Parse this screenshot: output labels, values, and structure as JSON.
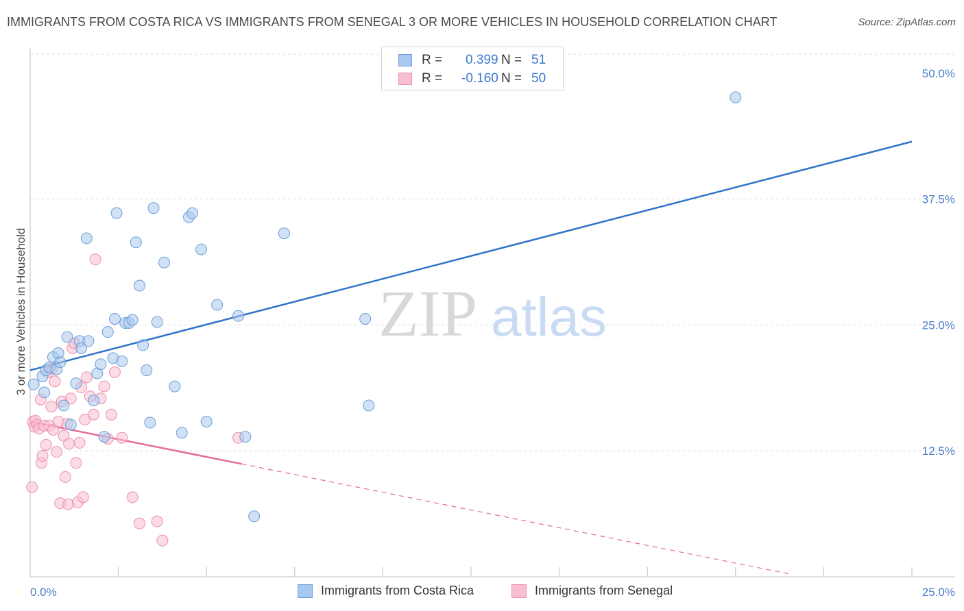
{
  "header": {
    "title": "IMMIGRANTS FROM COSTA RICA VS IMMIGRANTS FROM SENEGAL 3 OR MORE VEHICLES IN HOUSEHOLD CORRELATION CHART",
    "source": "Source: ZipAtlas.com"
  },
  "legend": {
    "row1": {
      "r_label": "R =",
      "r_value": "0.399",
      "n_label": "N =",
      "n_value": "51"
    },
    "row2": {
      "r_label": "R =",
      "r_value": "-0.160",
      "n_label": "N =",
      "n_value": "50"
    }
  },
  "watermark": {
    "zip": "ZIP",
    "atlas": "atlas"
  },
  "colors": {
    "blue_fill": "#a9c8ef",
    "blue_stroke": "#6a9fd8",
    "blue_line": "#2f73c9",
    "pink_fill": "#f7bfd0",
    "pink_stroke": "#ec8fae",
    "pink_line": "#e56b95",
    "grid": "#dddddd",
    "tick_text": "#4a7fc9"
  },
  "chart_data": {
    "type": "scatter",
    "title": "IMMIGRANTS FROM COSTA RICA VS IMMIGRANTS FROM SENEGAL 3 OR MORE VEHICLES IN HOUSEHOLD CORRELATION CHART",
    "xlabel": "",
    "ylabel": "3 or more Vehicles in Household",
    "xlim": [
      0,
      25
    ],
    "ylim": [
      0,
      52.5
    ],
    "x_tick_labels": [
      "0.0%",
      "25.0%"
    ],
    "y_ticks": [
      12.5,
      25.0,
      37.5,
      50.0
    ],
    "y_tick_labels": [
      "12.5%",
      "25.0%",
      "37.5%",
      "50.0%"
    ],
    "legend_position": "top-center",
    "series": [
      {
        "name": "Immigrants from Costa Rica",
        "R": 0.399,
        "N": 51,
        "trend": {
          "x": [
            0,
            25
          ],
          "y": [
            20.5,
            43.2
          ],
          "dashed_from": null
        },
        "points": [
          [
            0.1,
            19.1
          ],
          [
            0.35,
            19.9
          ],
          [
            0.4,
            18.3
          ],
          [
            0.45,
            20.5
          ],
          [
            0.55,
            20.8
          ],
          [
            0.65,
            21.8
          ],
          [
            0.75,
            20.6
          ],
          [
            0.8,
            22.2
          ],
          [
            0.85,
            21.3
          ],
          [
            0.95,
            17.0
          ],
          [
            1.05,
            23.8
          ],
          [
            1.15,
            15.1
          ],
          [
            1.3,
            19.2
          ],
          [
            1.4,
            23.4
          ],
          [
            1.45,
            22.7
          ],
          [
            1.6,
            33.6
          ],
          [
            1.65,
            23.4
          ],
          [
            1.8,
            17.5
          ],
          [
            1.9,
            20.2
          ],
          [
            2.0,
            21.1
          ],
          [
            2.1,
            13.9
          ],
          [
            2.2,
            24.3
          ],
          [
            2.35,
            21.7
          ],
          [
            2.4,
            25.6
          ],
          [
            2.45,
            36.1
          ],
          [
            2.6,
            21.4
          ],
          [
            2.7,
            25.2
          ],
          [
            2.8,
            25.2
          ],
          [
            2.9,
            25.5
          ],
          [
            3.0,
            33.2
          ],
          [
            3.1,
            28.9
          ],
          [
            3.2,
            23.0
          ],
          [
            3.3,
            20.5
          ],
          [
            3.4,
            15.3
          ],
          [
            3.5,
            36.6
          ],
          [
            3.6,
            25.3
          ],
          [
            3.8,
            31.2
          ],
          [
            4.1,
            18.9
          ],
          [
            4.3,
            14.3
          ],
          [
            4.5,
            35.7
          ],
          [
            4.6,
            36.1
          ],
          [
            4.85,
            32.5
          ],
          [
            5.0,
            15.4
          ],
          [
            5.3,
            27.0
          ],
          [
            5.9,
            25.9
          ],
          [
            6.1,
            13.9
          ],
          [
            6.35,
            6.0
          ],
          [
            7.2,
            34.1
          ],
          [
            9.5,
            25.6
          ],
          [
            9.6,
            17.0
          ],
          [
            20.0,
            47.6
          ]
        ]
      },
      {
        "name": "Immigrants from Senegal",
        "R": -0.16,
        "N": 50,
        "trend": {
          "x": [
            0,
            6.0
          ],
          "y": [
            15.4,
            11.2
          ],
          "dashed_to": [
            21.5,
            0.3
          ]
        },
        "points": [
          [
            0.05,
            8.9
          ],
          [
            0.08,
            15.4
          ],
          [
            0.12,
            14.9
          ],
          [
            0.15,
            15.5
          ],
          [
            0.2,
            15.1
          ],
          [
            0.25,
            14.7
          ],
          [
            0.3,
            17.6
          ],
          [
            0.32,
            11.3
          ],
          [
            0.35,
            12.0
          ],
          [
            0.4,
            15.0
          ],
          [
            0.45,
            13.1
          ],
          [
            0.5,
            20.3
          ],
          [
            0.55,
            15.0
          ],
          [
            0.6,
            16.9
          ],
          [
            0.62,
            20.7
          ],
          [
            0.65,
            14.6
          ],
          [
            0.7,
            19.4
          ],
          [
            0.75,
            12.4
          ],
          [
            0.8,
            15.4
          ],
          [
            0.85,
            7.3
          ],
          [
            0.9,
            17.4
          ],
          [
            0.95,
            14.0
          ],
          [
            1.0,
            9.9
          ],
          [
            1.05,
            15.2
          ],
          [
            1.08,
            7.2
          ],
          [
            1.1,
            13.2
          ],
          [
            1.15,
            17.7
          ],
          [
            1.2,
            22.7
          ],
          [
            1.25,
            23.2
          ],
          [
            1.3,
            11.3
          ],
          [
            1.35,
            7.4
          ],
          [
            1.4,
            13.3
          ],
          [
            1.45,
            18.8
          ],
          [
            1.5,
            7.9
          ],
          [
            1.55,
            15.6
          ],
          [
            1.6,
            19.8
          ],
          [
            1.7,
            17.9
          ],
          [
            1.8,
            16.1
          ],
          [
            1.85,
            31.5
          ],
          [
            2.0,
            17.7
          ],
          [
            2.1,
            18.9
          ],
          [
            2.2,
            13.7
          ],
          [
            2.3,
            16.1
          ],
          [
            2.4,
            20.3
          ],
          [
            2.6,
            13.8
          ],
          [
            2.9,
            7.9
          ],
          [
            3.1,
            5.3
          ],
          [
            3.6,
            5.5
          ],
          [
            3.75,
            3.6
          ],
          [
            5.9,
            13.8
          ]
        ]
      }
    ]
  },
  "axes": {
    "x_min_label": "0.0%",
    "x_max_label": "25.0%",
    "y_axis_title": "3 or more Vehicles in Household"
  }
}
